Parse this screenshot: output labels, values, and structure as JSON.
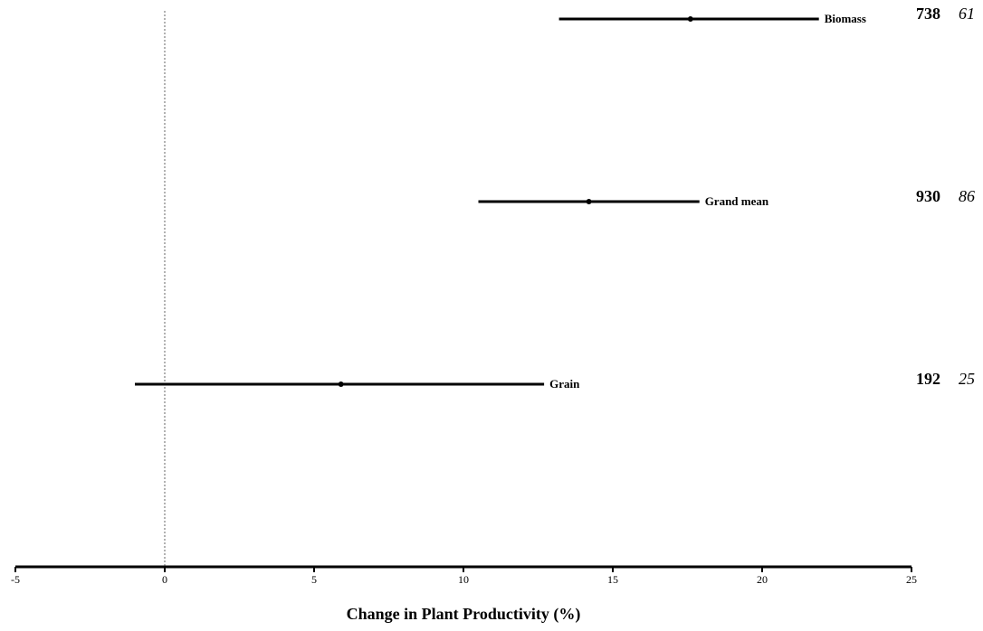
{
  "chart_data": {
    "type": "forest",
    "xlabel": "Change in Plant Productivity (%)",
    "xlim": [
      -5,
      25
    ],
    "xticks": [
      -5,
      0,
      5,
      10,
      15,
      20,
      25
    ],
    "reference_line": 0,
    "grid": false,
    "rows": [
      {
        "label": "Biomass",
        "mean": 17.6,
        "lower": 13.2,
        "upper": 21.9,
        "n": "738",
        "k": "61"
      },
      {
        "label": "Grand mean",
        "mean": 14.2,
        "lower": 10.5,
        "upper": 17.9,
        "n": "930",
        "k": "86"
      },
      {
        "label": "Grain",
        "mean": 5.9,
        "lower": -1.0,
        "upper": 12.7,
        "n": "192",
        "k": "25"
      }
    ]
  }
}
